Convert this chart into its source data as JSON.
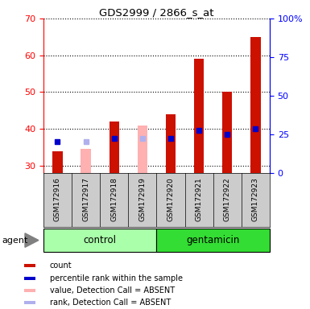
{
  "title": "GDS2999 / 2866_s_at",
  "samples": [
    "GSM172916",
    "GSM172917",
    "GSM172918",
    "GSM172919",
    "GSM172920",
    "GSM172921",
    "GSM172922",
    "GSM172923"
  ],
  "count_values": [
    34,
    null,
    42,
    null,
    44,
    59,
    50,
    65
  ],
  "rank_values": [
    36.5,
    null,
    37.5,
    null,
    37.5,
    39.5,
    38.5,
    40
  ],
  "absent_value_values": [
    null,
    34.5,
    null,
    41,
    null,
    null,
    null,
    null
  ],
  "absent_rank_values": [
    null,
    36.5,
    null,
    37.5,
    null,
    null,
    null,
    null
  ],
  "ylim_left": [
    28,
    70
  ],
  "ylim_right": [
    0,
    100
  ],
  "yticks_left": [
    30,
    40,
    50,
    60,
    70
  ],
  "yticks_right": [
    0,
    25,
    50,
    75,
    100
  ],
  "colors": {
    "count": "#cc1100",
    "rank": "#0000cc",
    "absent_value": "#ffb0b0",
    "absent_rank": "#b0b0ee",
    "control_bg": "#aaffaa",
    "gentamicin_bg": "#33dd33",
    "sample_bg": "#cccccc",
    "border": "#000000"
  },
  "legend_items": [
    {
      "label": "count",
      "color": "#cc1100"
    },
    {
      "label": "percentile rank within the sample",
      "color": "#0000cc"
    },
    {
      "label": "value, Detection Call = ABSENT",
      "color": "#ffb0b0"
    },
    {
      "label": "rank, Detection Call = ABSENT",
      "color": "#b0b0ee"
    }
  ]
}
